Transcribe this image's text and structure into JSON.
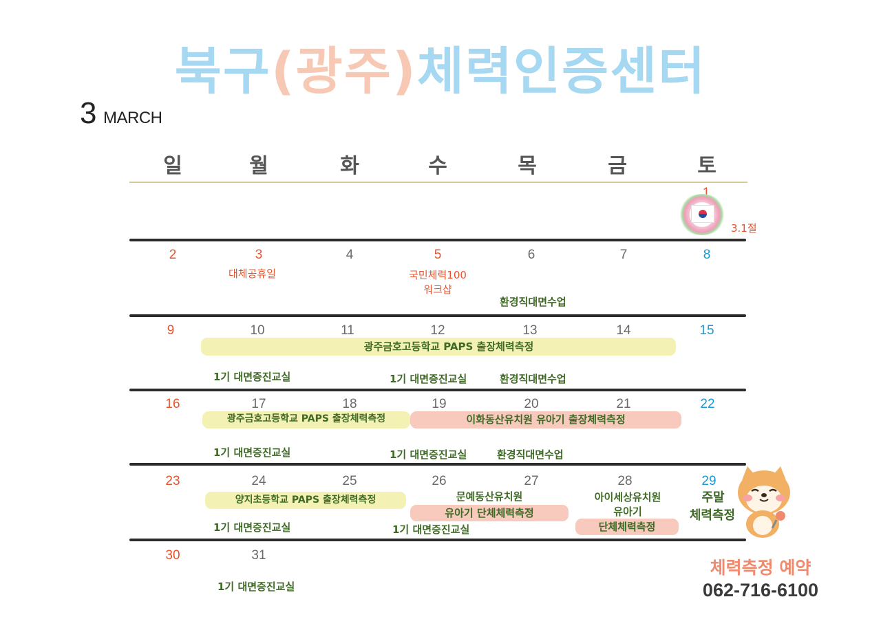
{
  "title": {
    "part1": "북구",
    "part2": "(광주)",
    "part3": "체력인증센터"
  },
  "month": {
    "number": "3",
    "name": "MARCH"
  },
  "weekdays": [
    "일",
    "월",
    "화",
    "수",
    "목",
    "금",
    "토"
  ],
  "colors": {
    "title_blue": "#a6d8f2",
    "title_pink": "#f7c9b4",
    "sunday": "#e8532f",
    "saturday": "#1a9ad6",
    "event_green": "#3e6a25",
    "highlight_yellow": "#f3f1b4",
    "highlight_pink": "#f8c9bd"
  },
  "days": {
    "d1": "1",
    "d2": "2",
    "d3": "3",
    "d4": "4",
    "d5": "5",
    "d6": "6",
    "d7": "7",
    "d8": "8",
    "d9": "9",
    "d10": "10",
    "d11": "11",
    "d12": "12",
    "d13": "13",
    "d14": "14",
    "d15": "15",
    "d16": "16",
    "d17": "17",
    "d18": "18",
    "d19": "19",
    "d20": "20",
    "d21": "21",
    "d22": "22",
    "d23": "23",
    "d24": "24",
    "d25": "25",
    "d26": "26",
    "d27": "27",
    "d28": "28",
    "d29": "29",
    "d30": "30",
    "d31": "31"
  },
  "events": {
    "holiday_31": "3.1절",
    "substitute_holiday": "대체공휴일",
    "workshop_line1": "국민체력100",
    "workshop_line2": "워크샵",
    "env_class": "환경직대면수업",
    "gwangju_paps": "광주금호고등학교 PAPS 출장체력측정",
    "class_1": "1기 대면증진교실",
    "ihwa": "이화동산유치원 유아기 출장체력측정",
    "yangji": "양지초등학교 PAPS 출장체력측정",
    "munye_line1": "문예동산유치원",
    "munye_line2": "유아기 단체체력측정",
    "aiise_line1": "아이세상유치원",
    "aiise_line2": "유아기",
    "aiise_line3": "단체체력측정",
    "weekend_line1": "주말",
    "weekend_line2": "체력측정"
  },
  "reservation": {
    "label": "체력측정 예약",
    "phone": "062-716-6100"
  },
  "icons": {
    "flag": "korean-flag-wreath-icon",
    "mascot": "shiba-dog-mascot-icon"
  }
}
